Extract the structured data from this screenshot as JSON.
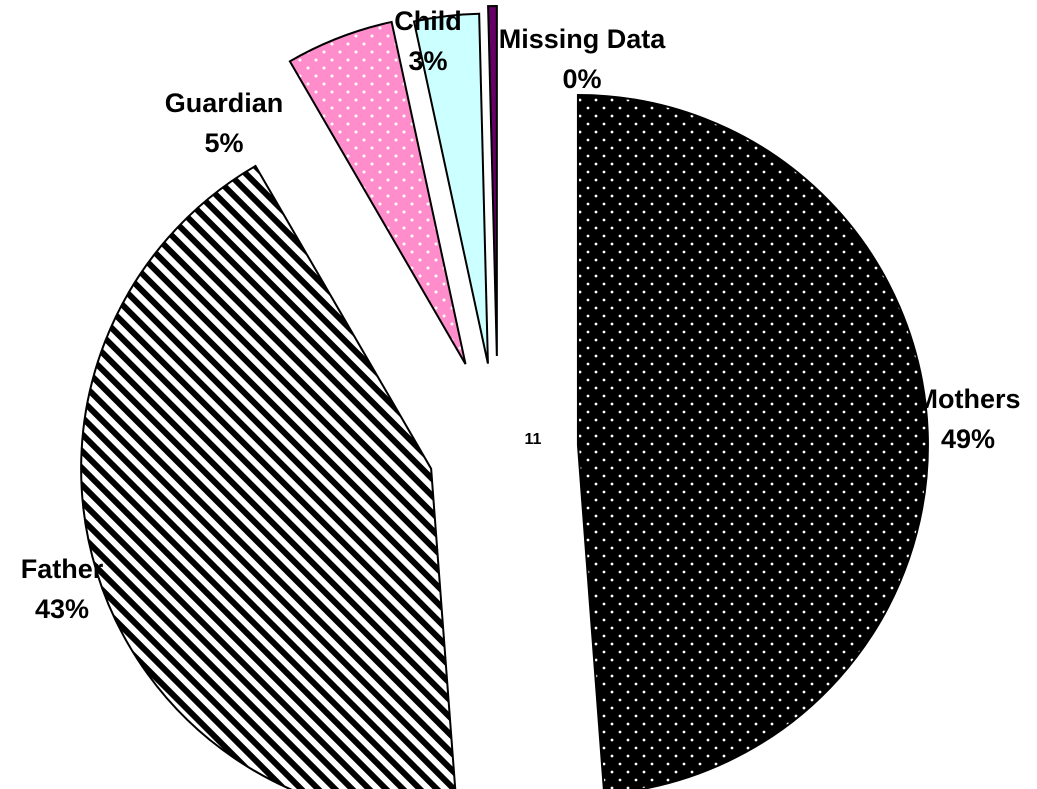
{
  "chart_data": {
    "type": "pie",
    "title": "",
    "center_text": "11",
    "slices": [
      {
        "name": "Mothers",
        "value": 49,
        "value_label": "49%",
        "color": "#000000",
        "pattern": "white-dots"
      },
      {
        "name": "Father",
        "value": 43,
        "value_label": "43%",
        "color": "#000000",
        "pattern": "diagonal-stripes"
      },
      {
        "name": "Guardian",
        "value": 5,
        "value_label": "5%",
        "color": "#ff8ccb",
        "pattern": "white-dots"
      },
      {
        "name": "Child",
        "value": 3,
        "value_label": "3%",
        "color": "#ccffff",
        "pattern": "none"
      },
      {
        "name": "Missing Data",
        "value": 0.4,
        "value_label": "0%",
        "color": "#660066",
        "pattern": "none"
      }
    ],
    "exploded": true,
    "legend": "none"
  }
}
